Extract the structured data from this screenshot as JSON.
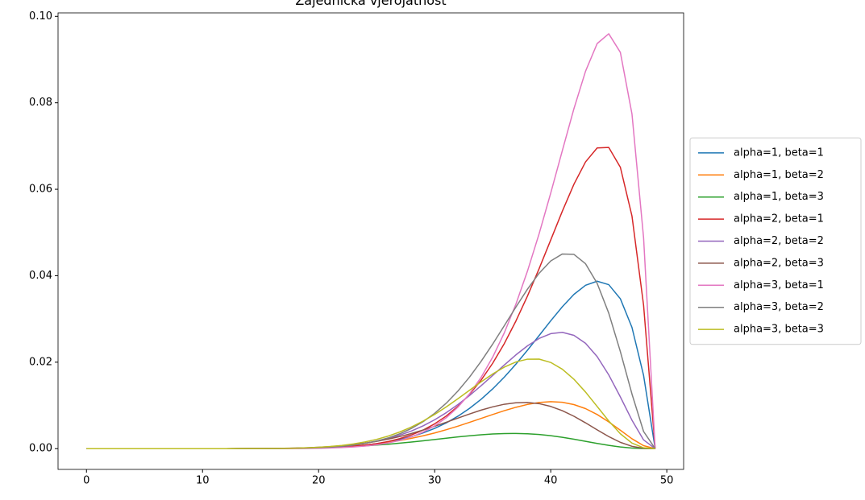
{
  "chart_data": {
    "type": "line",
    "title": "Zajednička vjerojatnost",
    "x": [
      0,
      1,
      2,
      3,
      4,
      5,
      6,
      7,
      8,
      9,
      10,
      11,
      12,
      13,
      14,
      15,
      16,
      17,
      18,
      19,
      20,
      21,
      22,
      23,
      24,
      25,
      26,
      27,
      28,
      29,
      30,
      31,
      32,
      33,
      34,
      35,
      36,
      37,
      38,
      39,
      40,
      41,
      42,
      43,
      44,
      45,
      46,
      47,
      48,
      49
    ],
    "xlim": [
      -2.45,
      51.45
    ],
    "xticks": [
      0,
      10,
      20,
      30,
      40,
      50
    ],
    "ylim": [
      -0.0048,
      0.1008
    ],
    "yticks": [
      {
        "value": 0,
        "label": "0.00"
      },
      {
        "value": 0.02,
        "label": "0.02"
      },
      {
        "value": 0.04,
        "label": "0.04"
      },
      {
        "value": 0.06,
        "label": "0.06"
      },
      {
        "value": 0.08,
        "label": "0.08"
      },
      {
        "value": 0.1,
        "label": "0.10"
      }
    ],
    "grid": false,
    "legend": "outside right",
    "series": [
      {
        "name": "alpha=1, beta=1",
        "color": "#1f77b4",
        "values": [
          0,
          0,
          0,
          0,
          0,
          0,
          0,
          0,
          0,
          0,
          0,
          0,
          0,
          0,
          1e-05,
          2e-05,
          3e-05,
          5e-05,
          8e-05,
          0.00012,
          0.00019,
          0.00028,
          0.00041,
          0.00059,
          0.00083,
          0.00115,
          0.00157,
          0.0021,
          0.00278,
          0.00364,
          0.00469,
          0.00596,
          0.0075,
          0.00931,
          0.01141,
          0.01383,
          0.01655,
          0.01955,
          0.02278,
          0.02616,
          0.02957,
          0.03282,
          0.03568,
          0.03779,
          0.03873,
          0.03793,
          0.03467,
          0.02805,
          0.01695,
          0
        ]
      },
      {
        "name": "alpha=1, beta=2",
        "color": "#ff7f0e",
        "values": [
          0,
          0,
          0,
          0,
          0,
          0,
          0,
          0,
          0,
          0,
          0,
          0,
          0,
          1e-05,
          1e-05,
          2e-05,
          4e-05,
          6e-05,
          0.0001,
          0.00015,
          0.00022,
          0.00032,
          0.00045,
          0.00062,
          0.00084,
          0.00112,
          0.00147,
          0.00189,
          0.00239,
          0.00297,
          0.00363,
          0.00438,
          0.0052,
          0.00608,
          0.00699,
          0.0079,
          0.00878,
          0.00957,
          0.01023,
          0.01068,
          0.01086,
          0.01072,
          0.01019,
          0.00926,
          0.0079,
          0.00619,
          0.00425,
          0.00229,
          0.00069,
          0
        ]
      },
      {
        "name": "alpha=1, beta=3",
        "color": "#2ca02c",
        "values": [
          0,
          0,
          0,
          0,
          0,
          0,
          0,
          0,
          0,
          0,
          0,
          0,
          0,
          1e-05,
          1e-05,
          2e-05,
          4e-05,
          6e-05,
          9e-05,
          0.00014,
          0.0002,
          0.00027,
          0.00037,
          0.0005,
          0.00065,
          0.00083,
          0.00103,
          0.00127,
          0.00153,
          0.00182,
          0.00211,
          0.00241,
          0.00271,
          0.00298,
          0.00321,
          0.00339,
          0.00349,
          0.00352,
          0.00344,
          0.00327,
          0.00299,
          0.00262,
          0.00218,
          0.0017,
          0.00121,
          0.00076,
          0.00039,
          0.00014,
          2e-05,
          0
        ]
      },
      {
        "name": "alpha=2, beta=1",
        "color": "#d62728",
        "values": [
          0,
          0,
          0,
          0,
          0,
          0,
          0,
          0,
          0,
          0,
          0,
          0,
          0,
          0,
          1e-05,
          1e-05,
          2e-05,
          3e-05,
          6e-05,
          9e-05,
          0.00015,
          0.00024,
          0.00037,
          0.00055,
          0.00081,
          0.00117,
          0.00166,
          0.00232,
          0.00318,
          0.0043,
          0.00574,
          0.00755,
          0.00979,
          0.01254,
          0.01584,
          0.01976,
          0.02431,
          0.02952,
          0.03533,
          0.04164,
          0.04827,
          0.05493,
          0.06116,
          0.06633,
          0.06956,
          0.06967,
          0.06509,
          0.05382,
          0.03321,
          0
        ]
      },
      {
        "name": "alpha=2, beta=2",
        "color": "#9467bd",
        "values": [
          0,
          0,
          0,
          0,
          0,
          0,
          0,
          0,
          0,
          0,
          0,
          0,
          0,
          1e-05,
          1e-05,
          2e-05,
          4e-05,
          6e-05,
          0.00011,
          0.00017,
          0.00027,
          0.00041,
          0.00061,
          0.00088,
          0.00124,
          0.00172,
          0.00234,
          0.00312,
          0.00409,
          0.00527,
          0.00668,
          0.00832,
          0.01019,
          0.01228,
          0.01455,
          0.01693,
          0.01935,
          0.02169,
          0.02379,
          0.02549,
          0.0266,
          0.02691,
          0.02621,
          0.02437,
          0.02129,
          0.01706,
          0.01196,
          0.00659,
          0.00203,
          0
        ]
      },
      {
        "name": "alpha=2, beta=3",
        "color": "#8c564b",
        "values": [
          0,
          0,
          0,
          0,
          0,
          0,
          0,
          0,
          0,
          0,
          0,
          0,
          0,
          1e-05,
          2e-05,
          3e-05,
          5e-05,
          8e-05,
          0.00014,
          0.00021,
          0.00032,
          0.00047,
          0.00067,
          0.00093,
          0.00127,
          0.00169,
          0.0022,
          0.0028,
          0.00351,
          0.0043,
          0.00518,
          0.00611,
          0.00707,
          0.00802,
          0.00891,
          0.00967,
          0.01027,
          0.01062,
          0.01068,
          0.01041,
          0.00977,
          0.00878,
          0.00749,
          0.00597,
          0.00435,
          0.00279,
          0.00146,
          0.00054,
          8e-05,
          0
        ]
      },
      {
        "name": "alpha=3, beta=1",
        "color": "#e377c2",
        "values": [
          0,
          0,
          0,
          0,
          0,
          0,
          0,
          0,
          0,
          0,
          0,
          0,
          0,
          0,
          0,
          0,
          1e-05,
          2e-05,
          3e-05,
          5e-05,
          9e-05,
          0.00015,
          0.00025,
          0.00039,
          0.0006,
          0.0009,
          0.00132,
          0.00192,
          0.00273,
          0.00382,
          0.00527,
          0.00716,
          0.00959,
          0.01266,
          0.01649,
          0.02117,
          0.02679,
          0.03343,
          0.0411,
          0.04971,
          0.05911,
          0.06894,
          0.07864,
          0.08731,
          0.0937,
          0.09597,
          0.09166,
          0.07743,
          0.0488,
          0
        ]
      },
      {
        "name": "alpha=3, beta=2",
        "color": "#7f7f7f",
        "values": [
          0,
          0,
          0,
          0,
          0,
          0,
          0,
          0,
          0,
          0,
          0,
          0,
          0,
          0,
          1e-05,
          1e-05,
          2e-05,
          4e-05,
          8e-05,
          0.00013,
          0.00022,
          0.00035,
          0.00054,
          0.00082,
          0.00122,
          0.00176,
          0.00248,
          0.00344,
          0.00468,
          0.00624,
          0.00818,
          0.01052,
          0.01331,
          0.01654,
          0.02019,
          0.02419,
          0.02844,
          0.03275,
          0.03691,
          0.04058,
          0.04342,
          0.04503,
          0.04494,
          0.04277,
          0.03824,
          0.03134,
          0.02245,
          0.01264,
          0.00398,
          0
        ]
      },
      {
        "name": "alpha=3, beta=3",
        "color": "#bcbd22",
        "values": [
          0,
          0,
          0,
          0,
          0,
          0,
          0,
          0,
          0,
          0,
          0,
          0,
          0,
          1e-05,
          1e-05,
          2e-05,
          4e-05,
          7e-05,
          0.00012,
          0.00021,
          0.00033,
          0.0005,
          0.00075,
          0.00109,
          0.00155,
          0.00215,
          0.00291,
          0.00386,
          0.00501,
          0.00637,
          0.00792,
          0.00966,
          0.01155,
          0.0135,
          0.01545,
          0.01728,
          0.01886,
          0.02005,
          0.0207,
          0.02071,
          0.01994,
          0.01838,
          0.01605,
          0.01309,
          0.00976,
          0.0064,
          0.00344,
          0.00129,
          0.0002,
          0
        ]
      }
    ]
  }
}
